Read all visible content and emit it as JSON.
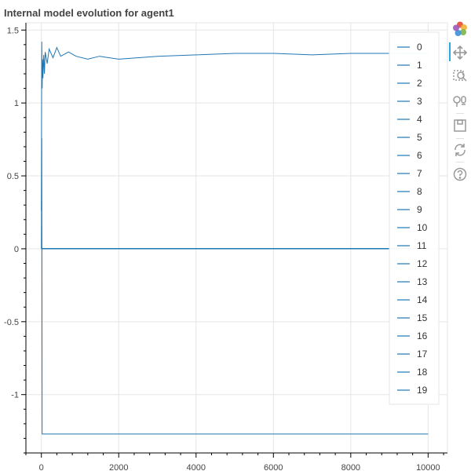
{
  "chart_data": {
    "type": "line",
    "title": "Internal model evolution for agent1",
    "xlabel": "",
    "ylabel": "",
    "xlim": [
      -400,
      10500
    ],
    "ylim": [
      -1.4,
      1.55
    ],
    "x_ticks": [
      0,
      2000,
      4000,
      6000,
      8000,
      10000
    ],
    "x_tick_labels": [
      "0",
      "2000",
      "4000",
      "6000",
      "8000",
      "10000"
    ],
    "y_ticks": [
      1.5,
      1,
      0.5,
      0,
      -0.5,
      -1
    ],
    "y_tick_labels": [
      "1.5",
      "1",
      "0.5",
      "0",
      "-0.5",
      "-1"
    ],
    "grid": true,
    "legend_placement": "top-right",
    "series_color": "#1f77b4",
    "series": [
      {
        "name": "0",
        "x": [
          0,
          10,
          20,
          30,
          40,
          60,
          80,
          100,
          150,
          200,
          300,
          400,
          500,
          700,
          900,
          1200,
          1500,
          2000,
          3000,
          4000,
          5000,
          6000,
          7000,
          8000,
          9000,
          10000
        ],
        "values": [
          0.26,
          1.42,
          1.1,
          1.3,
          1.17,
          1.33,
          1.2,
          1.35,
          1.27,
          1.37,
          1.31,
          1.38,
          1.32,
          1.35,
          1.32,
          1.3,
          1.32,
          1.3,
          1.32,
          1.33,
          1.34,
          1.34,
          1.33,
          1.34,
          1.34,
          1.34
        ]
      },
      {
        "name": "1",
        "x": [
          0,
          10,
          20,
          10000
        ],
        "values": [
          0,
          0.76,
          -1.27,
          -1.27
        ]
      },
      {
        "name": "2",
        "x": [
          0,
          10000
        ],
        "values": [
          0,
          0
        ]
      },
      {
        "name": "3",
        "x": [
          0,
          10000
        ],
        "values": [
          0,
          0
        ]
      },
      {
        "name": "4",
        "x": [
          0,
          10000
        ],
        "values": [
          0,
          0
        ]
      },
      {
        "name": "5",
        "x": [
          0,
          10000
        ],
        "values": [
          0,
          0
        ]
      },
      {
        "name": "6",
        "x": [
          0,
          10000
        ],
        "values": [
          0,
          0
        ]
      },
      {
        "name": "7",
        "x": [
          0,
          10000
        ],
        "values": [
          0,
          0
        ]
      },
      {
        "name": "8",
        "x": [
          0,
          10000
        ],
        "values": [
          0,
          0
        ]
      },
      {
        "name": "9",
        "x": [
          0,
          10000
        ],
        "values": [
          0,
          0
        ]
      },
      {
        "name": "10",
        "x": [
          0,
          10000
        ],
        "values": [
          0,
          0
        ]
      },
      {
        "name": "11",
        "x": [
          0,
          10000
        ],
        "values": [
          0,
          0
        ]
      },
      {
        "name": "12",
        "x": [
          0,
          10000
        ],
        "values": [
          0,
          0
        ]
      },
      {
        "name": "13",
        "x": [
          0,
          10000
        ],
        "values": [
          0,
          0
        ]
      },
      {
        "name": "14",
        "x": [
          0,
          10000
        ],
        "values": [
          0,
          0
        ]
      },
      {
        "name": "15",
        "x": [
          0,
          10000
        ],
        "values": [
          0,
          0
        ]
      },
      {
        "name": "16",
        "x": [
          0,
          10000
        ],
        "values": [
          0,
          0
        ]
      },
      {
        "name": "17",
        "x": [
          0,
          10000
        ],
        "values": [
          0,
          0
        ]
      },
      {
        "name": "18",
        "x": [
          0,
          10000
        ],
        "values": [
          0,
          0
        ]
      },
      {
        "name": "19",
        "x": [
          0,
          10000
        ],
        "values": [
          0,
          0
        ]
      }
    ]
  },
  "toolbar": {
    "tools": [
      "bokeh-logo-icon",
      "pan-icon",
      "box-zoom-icon",
      "wheel-zoom-icon",
      "save-icon",
      "reset-icon",
      "help-icon"
    ],
    "active_tool": "pan-icon",
    "accent_color": "#26aae1"
  }
}
